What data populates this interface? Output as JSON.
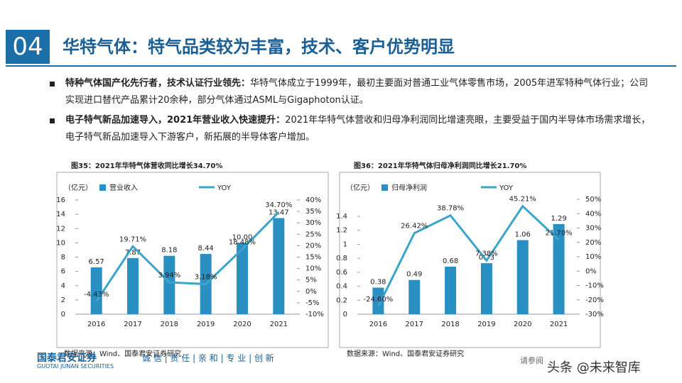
{
  "header": {
    "number": "04",
    "title": "华特气体：特气品类较为丰富，技术、客户优势明显"
  },
  "bullets": [
    {
      "bold": "特种气体国产化先行者，技术认证行业领先：",
      "text": "华特气体成立于1999年，最初主要面对普通工业气体零售市场，2005年进军特种气体行业；公司实现进口替代产品累计20余种，部分气体通过ASML与Gigaphoton认证。"
    },
    {
      "bold": "电子特气新品加速导入，2021年营业收入快速提升：",
      "text": "2021年华特气体营收和归母净利润同比增速亮眼，主要受益于国内半导体市场需求增长，电子特气新品加速导入下游客户，新拓展的半导体客户增加。"
    }
  ],
  "chart_data": [
    {
      "type": "bar-line",
      "title": "图35：2021年华特气体营收同比增长34.70%",
      "unit": "（亿元）",
      "source": "数据来源：Wind、国泰君安证券研究",
      "categories": [
        "2016",
        "2017",
        "2018",
        "2019",
        "2020",
        "2021"
      ],
      "series": [
        {
          "name": "营业收入",
          "type": "bar",
          "color": "#2a8fc1",
          "values": [
            6.57,
            7.87,
            8.18,
            8.44,
            10.0,
            13.47
          ],
          "value_labels": [
            "6.57",
            "7.87",
            "8.18",
            "8.44",
            "10.00",
            "13.47"
          ]
        },
        {
          "name": "YOY",
          "type": "line",
          "axis": "y2",
          "color": "#3aa5c9",
          "values": [
            -4.43,
            19.71,
            3.94,
            3.18,
            18.48,
            34.7
          ],
          "value_labels": [
            "-4.43%",
            "19.71%",
            "3.94%",
            "3.18%",
            "18.48%",
            "34.70%"
          ]
        }
      ],
      "ylim": [
        0,
        16
      ],
      "yticks": [
        0,
        2,
        4,
        6,
        8,
        10,
        12,
        14,
        16
      ],
      "y2lim": [
        -10,
        40
      ],
      "y2ticks": [
        {
          "value": -10,
          "label": "-10%"
        },
        {
          "value": -5,
          "label": "-5%"
        },
        {
          "value": 0,
          "label": "0%"
        },
        {
          "value": 5,
          "label": "5%"
        },
        {
          "value": 10,
          "label": "10%"
        },
        {
          "value": 15,
          "label": "15%"
        },
        {
          "value": 20,
          "label": "20%"
        },
        {
          "value": 25,
          "label": "25%"
        },
        {
          "value": 30,
          "label": "30%"
        },
        {
          "value": 35,
          "label": "35%"
        },
        {
          "value": 40,
          "label": "40%"
        }
      ]
    },
    {
      "type": "bar-line",
      "title": "图36：2021年华特气体归母净利润同比增长21.70%",
      "unit": "（亿元）",
      "source": "数据来源：Wind、国泰君安证券研究",
      "categories": [
        "2016",
        "2017",
        "2018",
        "2019",
        "2020",
        "2021"
      ],
      "series": [
        {
          "name": "归母净利润",
          "type": "bar",
          "color": "#2a8fc1",
          "values": [
            0.38,
            0.49,
            0.68,
            0.73,
            1.06,
            1.29
          ]
        },
        {
          "name": "YOY",
          "type": "line",
          "axis": "y2",
          "color": "#3aa5c9",
          "values": [
            -24.6,
            26.42,
            38.78,
            7.38,
            45.21,
            21.7
          ],
          "value_labels": [
            "-24.60%",
            "26.42%",
            "38.78%",
            "7.38%",
            "45.21%",
            "21.70%"
          ]
        }
      ],
      "ylim": [
        0,
        1.4
      ],
      "yticks": [
        0,
        0.2,
        0.4,
        0.6,
        0.8,
        1,
        1.2,
        1.4
      ],
      "y2lim": [
        -30,
        50
      ],
      "y2ticks": [
        {
          "value": -30,
          "label": "-30%"
        },
        {
          "value": -20,
          "label": "-20%"
        },
        {
          "value": -10,
          "label": "-10%"
        },
        {
          "value": 0,
          "label": "0%"
        },
        {
          "value": 10,
          "label": "10%"
        },
        {
          "value": 20,
          "label": "20%"
        },
        {
          "value": 30,
          "label": "30%"
        },
        {
          "value": 40,
          "label": "40%"
        },
        {
          "value": 50,
          "label": "50%"
        }
      ]
    }
  ],
  "footer": {
    "company": "国泰君安证券",
    "company_en": "GUOTAI JUNAN SECURITIES",
    "slogan": "诚 信 | 责 任 | 亲 和 | 专 业 | 创 新",
    "note": "请参阅",
    "watermark": "头条 @未来智库"
  }
}
